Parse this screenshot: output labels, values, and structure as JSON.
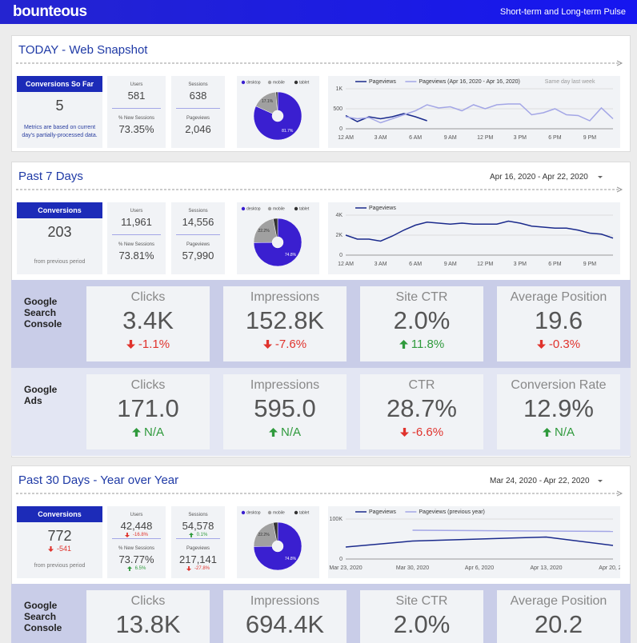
{
  "header": {
    "logo": "bounteous",
    "title": "Short-term and Long-term Pulse"
  },
  "sections": [
    {
      "title": "TODAY - Web Snapshot",
      "kpi": {
        "label": "Conversions So Far",
        "value": "5",
        "note": "Metrics are based on current day's partially-processed data."
      },
      "metrics": [
        {
          "label": "Users",
          "value": "581"
        },
        {
          "label": "% New Sessions",
          "value": "73.35%"
        },
        {
          "label": "Sessions",
          "value": "638"
        },
        {
          "label": "Pageviews",
          "value": "2,046"
        }
      ],
      "donut": {
        "type": "pie",
        "categories": [
          "desktop",
          "mobile",
          "tablet"
        ],
        "values": [
          81.7,
          17.1,
          1.2
        ],
        "value_labels": [
          "81.7%",
          "17.1%",
          null
        ],
        "colors": [
          "#3a1fd0",
          "#a0a0a0",
          "#333333"
        ]
      },
      "trend": {
        "type": "line",
        "categories": [
          "12 AM",
          null,
          null,
          "3 AM",
          null,
          null,
          "6 AM",
          null,
          null,
          "9 AM",
          null,
          null,
          "12 PM",
          null,
          null,
          "3 PM",
          null,
          null,
          "6 PM",
          null,
          null,
          "9 PM",
          null,
          null
        ],
        "series": [
          {
            "name": "Pageviews",
            "color": "#1a2a8c",
            "values": [
              330,
              180,
              300,
              250,
              300,
              380,
              300,
              200,
              null,
              null,
              null,
              null,
              null,
              null,
              null,
              null,
              null,
              null,
              null,
              null,
              null,
              null,
              null,
              null
            ]
          },
          {
            "name": "Pageviews (Apr 16, 2020 - Apr 16, 2020)",
            "color": "#a3a6e6",
            "values": [
              300,
              250,
              280,
              150,
              250,
              350,
              450,
              600,
              520,
              550,
              450,
              600,
              500,
              600,
              620,
              620,
              350,
              400,
              500,
              350,
              330,
              200,
              520,
              250
            ]
          }
        ],
        "annotation": "Same day last week",
        "ylim": [
          0,
          1000
        ],
        "yticks": [
          0,
          500,
          {
            "value": 1000,
            "label": "1K"
          }
        ],
        "grid": true
      }
    },
    {
      "title": "Past 7 Days",
      "date": "Apr 16, 2020 - Apr 22, 2020",
      "kpi": {
        "label": "Conversions",
        "value": "203",
        "note": "from previous period"
      },
      "metrics": [
        {
          "label": "Users",
          "value": "11,961"
        },
        {
          "label": "% New Sessions",
          "value": "73.81%"
        },
        {
          "label": "Sessions",
          "value": "14,556"
        },
        {
          "label": "Pageviews",
          "value": "57,990"
        }
      ],
      "donut": {
        "type": "pie",
        "categories": [
          "desktop",
          "mobile",
          "tablet"
        ],
        "values": [
          74.8,
          22.2,
          3.0
        ],
        "value_labels": [
          "74.8%",
          "22.2%",
          null
        ],
        "colors": [
          "#3a1fd0",
          "#a0a0a0",
          "#333333"
        ]
      },
      "trend": {
        "type": "line",
        "categories": [
          "12 AM",
          null,
          null,
          "3 AM",
          null,
          null,
          "6 AM",
          null,
          null,
          "9 AM",
          null,
          null,
          "12 PM",
          null,
          null,
          "3 PM",
          null,
          null,
          "6 PM",
          null,
          null,
          "9 PM",
          null,
          null
        ],
        "series": [
          {
            "name": "Pageviews",
            "color": "#1a2a8c",
            "values": [
              2000,
              1600,
              1600,
              1400,
              1900,
              2500,
              3000,
              3300,
              3200,
              3100,
              3200,
              3100,
              3100,
              3100,
              3400,
              3200,
              2900,
              2800,
              2700,
              2700,
              2500,
              2200,
              2100,
              1700
            ]
          }
        ],
        "ylim": [
          0,
          4000
        ],
        "yticks": [
          0,
          {
            "value": 2000,
            "label": "2K"
          },
          {
            "value": 4000,
            "label": "4K"
          }
        ],
        "grid": true
      },
      "bands": [
        {
          "name": "Google Search Console",
          "cards": [
            {
              "label": "Clicks",
              "value": "3.4K",
              "change": "-1.1%",
              "direction": "down"
            },
            {
              "label": "Impressions",
              "value": "152.8K",
              "change": "-7.6%",
              "direction": "down"
            },
            {
              "label": "Site CTR",
              "value": "2.0%",
              "change": "11.8%",
              "direction": "up"
            },
            {
              "label": "Average Position",
              "value": "19.6",
              "change": "-0.3%",
              "direction": "down"
            }
          ]
        },
        {
          "name": "Google Ads",
          "cards": [
            {
              "label": "Clicks",
              "value": "171.0",
              "change": "N/A",
              "direction": "up"
            },
            {
              "label": "Impressions",
              "value": "595.0",
              "change": "N/A",
              "direction": "up"
            },
            {
              "label": "CTR",
              "value": "28.7%",
              "change": "-6.6%",
              "direction": "down"
            },
            {
              "label": "Conversion Rate",
              "value": "12.9%",
              "change": "N/A",
              "direction": "up"
            }
          ]
        }
      ]
    },
    {
      "title": "Past 30 Days - Year over Year",
      "date": "Mar 24, 2020 - Apr 22, 2020",
      "kpi": {
        "label": "Conversions",
        "value": "772",
        "change": "-541",
        "direction": "down",
        "note": "from previous period"
      },
      "metrics": [
        {
          "label": "Users",
          "value": "42,448",
          "change": "-16.8%",
          "direction": "down"
        },
        {
          "label": "% New Sessions",
          "value": "73.77%",
          "change": "6.5%",
          "direction": "up"
        },
        {
          "label": "Sessions",
          "value": "54,578",
          "change": "0.1%",
          "direction": "up"
        },
        {
          "label": "Pageviews",
          "value": "217,141",
          "change": "-27.8%",
          "direction": "down"
        }
      ],
      "donut": {
        "type": "pie",
        "categories": [
          "desktop",
          "mobile",
          "tablet"
        ],
        "values": [
          74.8,
          22.2,
          3.0
        ],
        "value_labels": [
          "74.8%",
          "22.2%",
          null
        ],
        "colors": [
          "#3a1fd0",
          "#a0a0a0",
          "#333333"
        ]
      },
      "trend": {
        "type": "line",
        "categories": [
          "Mar 23, 2020",
          "Mar 30, 2020",
          "Apr 6, 2020",
          "Apr 13, 2020",
          "Apr 20, 2…"
        ],
        "series": [
          {
            "name": "Pageviews",
            "color": "#1a2a8c",
            "values": [
              30000,
              45000,
              50000,
              55000,
              34000
            ]
          },
          {
            "name": "Pageviews (previous year)",
            "color": "#a3a6e6",
            "values": [
              null,
              72000,
              71000,
              70000,
              69000
            ]
          }
        ],
        "ylim": [
          0,
          100000
        ],
        "yticks": [
          0,
          {
            "value": 100000,
            "label": "100K"
          }
        ],
        "grid": true
      },
      "bands": [
        {
          "name": "Google Search Console",
          "cards": [
            {
              "label": "Clicks",
              "value": "13.8K"
            },
            {
              "label": "Impressions",
              "value": "694.4K"
            },
            {
              "label": "Site CTR",
              "value": "2.0%"
            },
            {
              "label": "Average Position",
              "value": "20.2"
            }
          ]
        }
      ]
    }
  ]
}
